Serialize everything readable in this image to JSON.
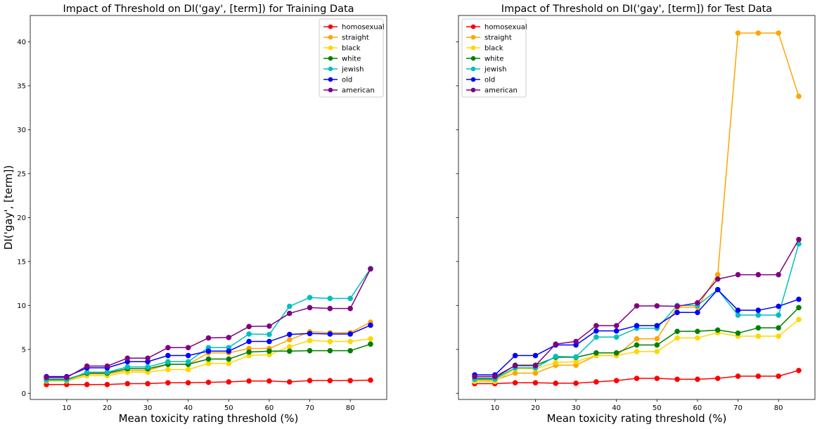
{
  "chart_data": [
    {
      "type": "line",
      "title": "Impact of Threshold on DI('gay', [term]) for Training Data",
      "xlabel": "Mean toxicity rating threshold (%)",
      "ylabel": "DI('gay', [term])",
      "xlim": [
        1.0,
        89.0
      ],
      "ylim": [
        -0.7,
        43.0
      ],
      "xticks": [
        10,
        20,
        30,
        40,
        50,
        60,
        70,
        80
      ],
      "yticks": [
        0,
        5,
        10,
        15,
        20,
        25,
        30,
        35,
        40
      ],
      "legend": "top-right",
      "grid": false,
      "x": [
        5,
        10,
        15,
        20,
        25,
        30,
        35,
        40,
        45,
        50,
        55,
        60,
        65,
        70,
        75,
        80,
        85
      ],
      "series": [
        {
          "name": "homosexual",
          "color": "#ff0000",
          "values": [
            1.0,
            1.0,
            1.0,
            1.0,
            1.1,
            1.1,
            1.2,
            1.2,
            1.25,
            1.3,
            1.4,
            1.4,
            1.3,
            1.45,
            1.45,
            1.45,
            1.5
          ]
        },
        {
          "name": "straight",
          "color": "#ffa500",
          "values": [
            1.5,
            1.5,
            2.2,
            2.2,
            2.6,
            2.6,
            3.3,
            3.3,
            4.6,
            4.6,
            5.1,
            5.1,
            6.1,
            7.0,
            6.9,
            6.9,
            8.1
          ]
        },
        {
          "name": "black",
          "color": "#ffd700",
          "values": [
            1.4,
            1.4,
            2.0,
            2.0,
            2.4,
            2.4,
            2.7,
            2.7,
            3.4,
            3.4,
            4.3,
            4.4,
            5.3,
            6.0,
            5.9,
            5.9,
            6.2
          ]
        },
        {
          "name": "white",
          "color": "#008000",
          "values": [
            1.6,
            1.6,
            2.3,
            2.3,
            2.8,
            2.8,
            3.3,
            3.3,
            3.9,
            3.9,
            4.7,
            4.8,
            4.8,
            4.85,
            4.85,
            4.85,
            5.6
          ]
        },
        {
          "name": "jewish",
          "color": "#00bfbf",
          "values": [
            1.5,
            1.5,
            2.4,
            2.4,
            3.0,
            3.0,
            3.6,
            3.6,
            5.2,
            5.2,
            6.75,
            6.7,
            9.9,
            10.9,
            10.8,
            10.8,
            14.2
          ]
        },
        {
          "name": "old",
          "color": "#0000ff",
          "values": [
            1.9,
            1.9,
            2.9,
            2.9,
            3.6,
            3.6,
            4.3,
            4.3,
            4.8,
            4.8,
            5.9,
            5.9,
            6.7,
            6.8,
            6.75,
            6.75,
            7.75
          ]
        },
        {
          "name": "american",
          "color": "#800080",
          "values": [
            1.8,
            1.8,
            3.1,
            3.1,
            4.0,
            4.0,
            5.2,
            5.2,
            6.3,
            6.35,
            7.6,
            7.65,
            9.1,
            9.75,
            9.65,
            9.65,
            14.15
          ]
        }
      ]
    },
    {
      "type": "line",
      "title": "Impact of Threshold on DI('gay', [term]) for Test Data",
      "xlabel": "Mean toxicity rating threshold (%)",
      "ylabel": "",
      "xlim": [
        1.0,
        89.0
      ],
      "ylim": [
        -0.7,
        43.0
      ],
      "xticks": [
        10,
        20,
        30,
        40,
        50,
        60,
        70,
        80
      ],
      "yticks": [
        0,
        5,
        10,
        15,
        20,
        25,
        30,
        35,
        40
      ],
      "legend": "top-left",
      "grid": false,
      "x": [
        5,
        10,
        15,
        20,
        25,
        30,
        35,
        40,
        45,
        50,
        55,
        60,
        65,
        70,
        75,
        80,
        85
      ],
      "series": [
        {
          "name": "homosexual",
          "color": "#ff0000",
          "values": [
            1.1,
            1.1,
            1.2,
            1.2,
            1.15,
            1.15,
            1.3,
            1.45,
            1.7,
            1.7,
            1.6,
            1.6,
            1.7,
            1.95,
            1.95,
            1.95,
            2.6
          ]
        },
        {
          "name": "straight",
          "color": "#ffa500",
          "values": [
            1.5,
            1.5,
            2.3,
            2.3,
            3.2,
            3.2,
            4.3,
            4.3,
            6.2,
            6.2,
            9.8,
            9.8,
            13.5,
            41.0,
            41.0,
            41.0,
            33.8
          ]
        },
        {
          "name": "black",
          "color": "#ffd700",
          "values": [
            1.35,
            1.35,
            2.8,
            2.8,
            3.5,
            3.6,
            4.3,
            4.3,
            4.75,
            4.75,
            6.3,
            6.3,
            6.9,
            6.5,
            6.5,
            6.5,
            8.4
          ]
        },
        {
          "name": "white",
          "color": "#008000",
          "values": [
            1.7,
            1.7,
            3.2,
            3.2,
            4.1,
            4.1,
            4.6,
            4.6,
            5.5,
            5.5,
            7.05,
            7.05,
            7.2,
            6.85,
            7.45,
            7.45,
            9.75
          ]
        },
        {
          "name": "jewish",
          "color": "#00bfbf",
          "values": [
            1.6,
            1.6,
            2.9,
            2.9,
            4.2,
            4.15,
            6.4,
            6.4,
            7.4,
            7.4,
            10.0,
            10.0,
            11.8,
            8.9,
            8.9,
            8.9,
            17.0
          ]
        },
        {
          "name": "old",
          "color": "#0000ff",
          "values": [
            2.1,
            2.1,
            4.3,
            4.3,
            5.5,
            5.5,
            7.1,
            7.1,
            7.7,
            7.7,
            9.2,
            9.2,
            11.8,
            9.45,
            9.45,
            9.9,
            10.7
          ]
        },
        {
          "name": "american",
          "color": "#800080",
          "values": [
            1.9,
            1.9,
            3.15,
            3.15,
            5.6,
            5.9,
            7.7,
            7.7,
            9.95,
            9.95,
            9.9,
            10.3,
            13.0,
            13.5,
            13.5,
            13.5,
            17.5
          ]
        }
      ]
    }
  ]
}
